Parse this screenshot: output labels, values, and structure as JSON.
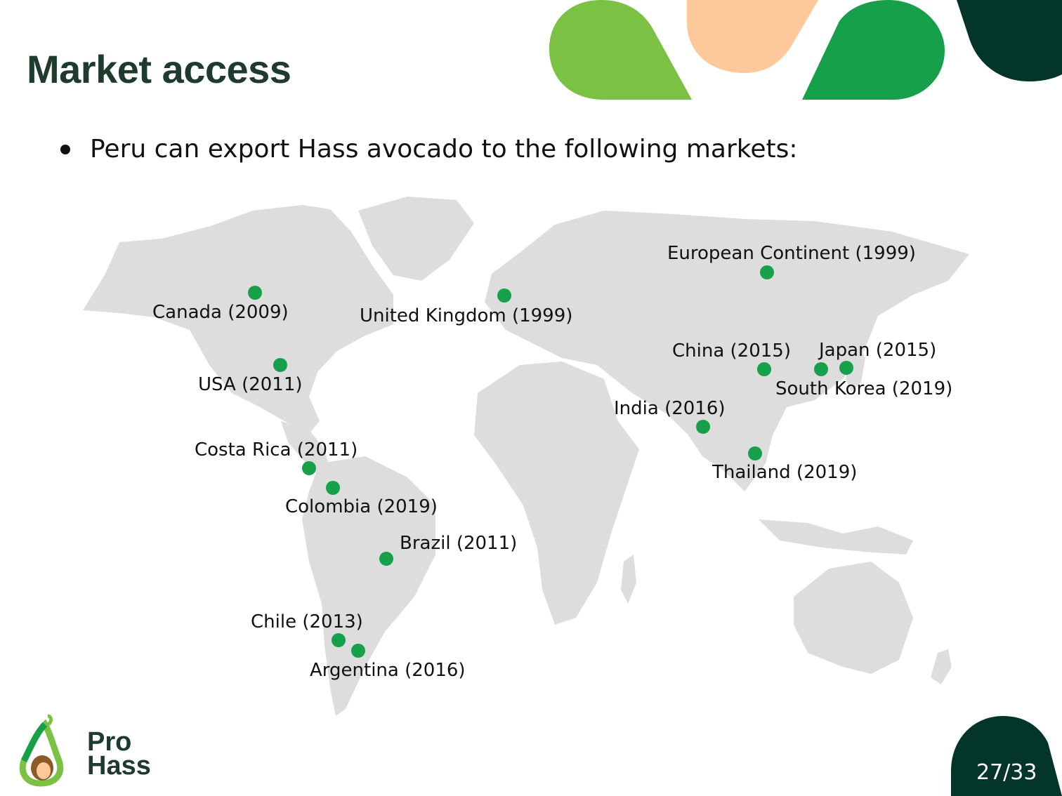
{
  "slide": {
    "title": "Market access",
    "bullet": "Peru can export Hass avocado to the following markets:",
    "page": "27/33"
  },
  "logo": {
    "line1": "Pro",
    "line2": "Hass"
  },
  "colors": {
    "title": "#1f3b2d",
    "marker": "#16a04a",
    "land": "#dddddd",
    "deco_lightgreen": "#7bc143",
    "deco_peach": "#fdc99b",
    "deco_green": "#16a04a",
    "deco_dark": "#04352a"
  },
  "markets": [
    {
      "label": "European Continent (1999)"
    },
    {
      "label": "United Kingdom (1999)"
    },
    {
      "label": "Canada (2009)"
    },
    {
      "label": "USA (2011)"
    },
    {
      "label": "China (2015)"
    },
    {
      "label": "Japan (2015)"
    },
    {
      "label": "South Korea (2019)"
    },
    {
      "label": "India (2016)"
    },
    {
      "label": "Thailand (2019)"
    },
    {
      "label": "Costa Rica (2011)"
    },
    {
      "label": "Colombia (2019)"
    },
    {
      "label": "Brazil (2011)"
    },
    {
      "label": "Chile (2013)"
    },
    {
      "label": "Argentina (2016)"
    }
  ]
}
